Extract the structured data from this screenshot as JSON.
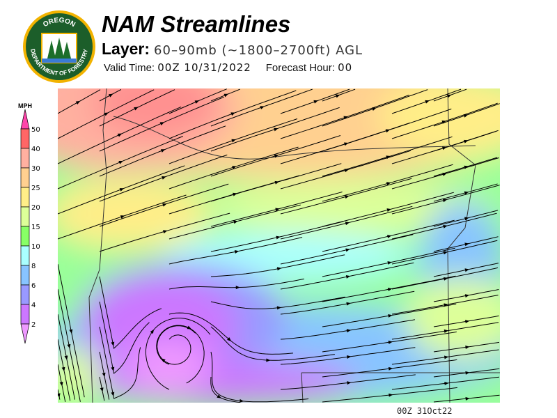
{
  "header": {
    "title": "NAM Streamlines",
    "layer_label": "Layer:",
    "layer_value": "60–90mb (~1800–2700ft) AGL",
    "valid_label": "Valid Time:",
    "valid_value": "00Z 10/31/2022",
    "forecast_label": "Forecast Hour:",
    "forecast_value": "00"
  },
  "logo": {
    "text_top": "OREGON",
    "text_bottom": "DEPARTMENT OF FORESTRY",
    "colors": {
      "ring": "#f2b300",
      "field": "#1c5e2a"
    }
  },
  "legend": {
    "unit": "MPH",
    "ticks": [
      "50",
      "40",
      "30",
      "25",
      "20",
      "15",
      "10",
      "8",
      "6",
      "4",
      "2"
    ],
    "colors": [
      "#ff44aa",
      "#ff6666",
      "#ffb0a0",
      "#ffd090",
      "#ffee88",
      "#ddff99",
      "#88ff66",
      "#aaffff",
      "#88c4ff",
      "#9999ff",
      "#cc77ff",
      "#ee99ff"
    ]
  },
  "map": {
    "field": "wind speed streamlines",
    "region": "Oregon"
  },
  "footer": {
    "stamp": "00Z 31Oct22"
  }
}
